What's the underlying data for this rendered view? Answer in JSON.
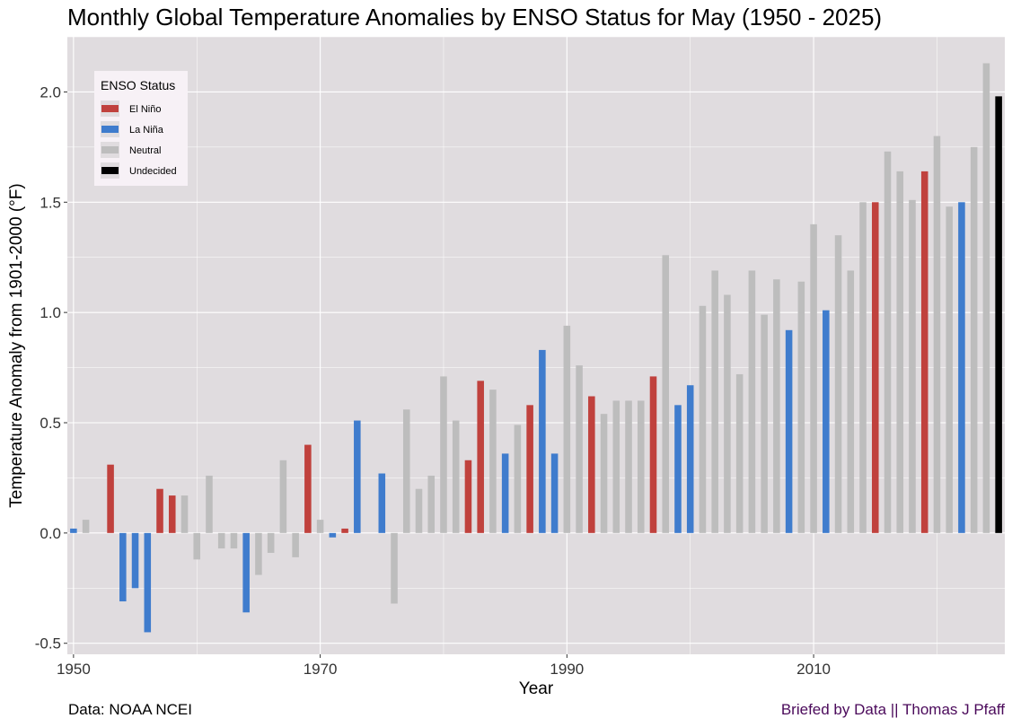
{
  "chart_data": {
    "type": "bar",
    "title": "Monthly Global Temperature Anomalies by ENSO Status for May (1950 - 2025)",
    "xlabel": "Year",
    "ylabel": "Temperature Anomaly from 1901-2000  (°F)",
    "xlim": [
      1949.5,
      2025.5
    ],
    "ylim": [
      -0.55,
      2.25
    ],
    "x_ticks": [
      1950,
      1970,
      1990,
      2010
    ],
    "y_ticks": [
      -0.5,
      0.0,
      0.5,
      1.0,
      1.5,
      2.0
    ],
    "y_tick_labels": [
      "-0.5",
      "0.0",
      "0.5",
      "1.0",
      "1.5",
      "2.0"
    ],
    "grid": true,
    "legend": {
      "title": "ENSO Status",
      "placement": "top-left",
      "entries": [
        {
          "label": "El Niño",
          "color": "#c0413d"
        },
        {
          "label": "La Niña",
          "color": "#3f7ccd"
        },
        {
          "label": "Neutral",
          "color": "#bdbdbd"
        },
        {
          "label": "Undecided",
          "color": "#000000"
        }
      ]
    },
    "bars": [
      {
        "year": 1950,
        "value": 0.02,
        "status": "La Niña"
      },
      {
        "year": 1951,
        "value": 0.06,
        "status": "Neutral"
      },
      {
        "year": 1953,
        "value": 0.31,
        "status": "El Niño"
      },
      {
        "year": 1954,
        "value": -0.31,
        "status": "La Niña"
      },
      {
        "year": 1955,
        "value": -0.25,
        "status": "La Niña"
      },
      {
        "year": 1956,
        "value": -0.45,
        "status": "La Niña"
      },
      {
        "year": 1957,
        "value": 0.2,
        "status": "El Niño"
      },
      {
        "year": 1958,
        "value": 0.17,
        "status": "El Niño"
      },
      {
        "year": 1959,
        "value": 0.17,
        "status": "Neutral"
      },
      {
        "year": 1960,
        "value": -0.12,
        "status": "Neutral"
      },
      {
        "year": 1961,
        "value": 0.26,
        "status": "Neutral"
      },
      {
        "year": 1962,
        "value": -0.07,
        "status": "Neutral"
      },
      {
        "year": 1963,
        "value": -0.07,
        "status": "Neutral"
      },
      {
        "year": 1964,
        "value": -0.36,
        "status": "La Niña"
      },
      {
        "year": 1965,
        "value": -0.19,
        "status": "Neutral"
      },
      {
        "year": 1966,
        "value": -0.09,
        "status": "Neutral"
      },
      {
        "year": 1967,
        "value": 0.33,
        "status": "Neutral"
      },
      {
        "year": 1968,
        "value": -0.11,
        "status": "Neutral"
      },
      {
        "year": 1969,
        "value": 0.4,
        "status": "El Niño"
      },
      {
        "year": 1970,
        "value": 0.06,
        "status": "Neutral"
      },
      {
        "year": 1971,
        "value": -0.02,
        "status": "La Niña"
      },
      {
        "year": 1972,
        "value": 0.02,
        "status": "El Niño"
      },
      {
        "year": 1973,
        "value": 0.51,
        "status": "La Niña"
      },
      {
        "year": 1975,
        "value": 0.27,
        "status": "La Niña"
      },
      {
        "year": 1976,
        "value": -0.32,
        "status": "Neutral"
      },
      {
        "year": 1977,
        "value": 0.56,
        "status": "Neutral"
      },
      {
        "year": 1978,
        "value": 0.2,
        "status": "Neutral"
      },
      {
        "year": 1979,
        "value": 0.26,
        "status": "Neutral"
      },
      {
        "year": 1980,
        "value": 0.71,
        "status": "Neutral"
      },
      {
        "year": 1981,
        "value": 0.51,
        "status": "Neutral"
      },
      {
        "year": 1982,
        "value": 0.33,
        "status": "El Niño"
      },
      {
        "year": 1983,
        "value": 0.69,
        "status": "El Niño"
      },
      {
        "year": 1984,
        "value": 0.65,
        "status": "Neutral"
      },
      {
        "year": 1985,
        "value": 0.36,
        "status": "La Niña"
      },
      {
        "year": 1986,
        "value": 0.49,
        "status": "Neutral"
      },
      {
        "year": 1987,
        "value": 0.58,
        "status": "El Niño"
      },
      {
        "year": 1988,
        "value": 0.83,
        "status": "La Niña"
      },
      {
        "year": 1989,
        "value": 0.36,
        "status": "La Niña"
      },
      {
        "year": 1990,
        "value": 0.94,
        "status": "Neutral"
      },
      {
        "year": 1991,
        "value": 0.76,
        "status": "Neutral"
      },
      {
        "year": 1992,
        "value": 0.62,
        "status": "El Niño"
      },
      {
        "year": 1993,
        "value": 0.54,
        "status": "Neutral"
      },
      {
        "year": 1994,
        "value": 0.6,
        "status": "Neutral"
      },
      {
        "year": 1995,
        "value": 0.6,
        "status": "Neutral"
      },
      {
        "year": 1996,
        "value": 0.6,
        "status": "Neutral"
      },
      {
        "year": 1997,
        "value": 0.71,
        "status": "El Niño"
      },
      {
        "year": 1998,
        "value": 1.26,
        "status": "Neutral"
      },
      {
        "year": 1999,
        "value": 0.58,
        "status": "La Niña"
      },
      {
        "year": 2000,
        "value": 0.67,
        "status": "La Niña"
      },
      {
        "year": 2001,
        "value": 1.03,
        "status": "Neutral"
      },
      {
        "year": 2002,
        "value": 1.19,
        "status": "Neutral"
      },
      {
        "year": 2003,
        "value": 1.08,
        "status": "Neutral"
      },
      {
        "year": 2004,
        "value": 0.72,
        "status": "Neutral"
      },
      {
        "year": 2005,
        "value": 1.19,
        "status": "Neutral"
      },
      {
        "year": 2006,
        "value": 0.99,
        "status": "Neutral"
      },
      {
        "year": 2007,
        "value": 1.15,
        "status": "Neutral"
      },
      {
        "year": 2008,
        "value": 0.92,
        "status": "La Niña"
      },
      {
        "year": 2009,
        "value": 1.14,
        "status": "Neutral"
      },
      {
        "year": 2010,
        "value": 1.4,
        "status": "Neutral"
      },
      {
        "year": 2011,
        "value": 1.01,
        "status": "La Niña"
      },
      {
        "year": 2012,
        "value": 1.35,
        "status": "Neutral"
      },
      {
        "year": 2013,
        "value": 1.19,
        "status": "Neutral"
      },
      {
        "year": 2014,
        "value": 1.5,
        "status": "Neutral"
      },
      {
        "year": 2015,
        "value": 1.5,
        "status": "El Niño"
      },
      {
        "year": 2016,
        "value": 1.73,
        "status": "Neutral"
      },
      {
        "year": 2017,
        "value": 1.64,
        "status": "Neutral"
      },
      {
        "year": 2018,
        "value": 1.51,
        "status": "Neutral"
      },
      {
        "year": 2019,
        "value": 1.64,
        "status": "El Niño"
      },
      {
        "year": 2020,
        "value": 1.8,
        "status": "Neutral"
      },
      {
        "year": 2021,
        "value": 1.48,
        "status": "Neutral"
      },
      {
        "year": 2022,
        "value": 1.5,
        "status": "La Niña"
      },
      {
        "year": 2023,
        "value": 1.75,
        "status": "Neutral"
      },
      {
        "year": 2024,
        "value": 2.13,
        "status": "Neutral"
      },
      {
        "year": 2025,
        "value": 1.98,
        "status": "Undecided"
      }
    ]
  },
  "footer": {
    "source": "Data: NOAA NCEI",
    "credit": "Briefed by Data || Thomas J Pfaff"
  }
}
